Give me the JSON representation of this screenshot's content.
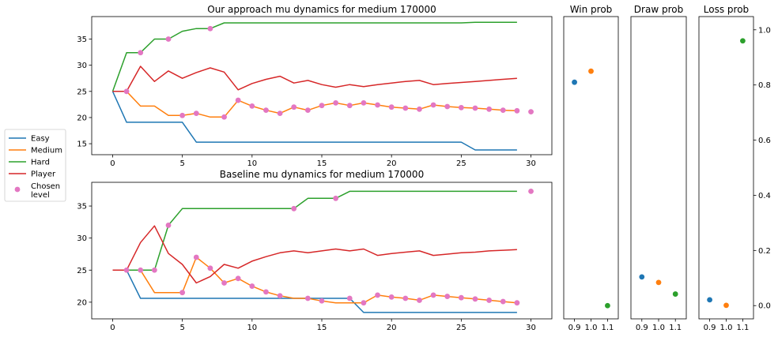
{
  "colors": {
    "easy": "#1f77b4",
    "medium": "#ff7f0e",
    "hard": "#2ca02c",
    "player": "#d62728",
    "chosen": "#e377c2"
  },
  "legend": {
    "items": [
      {
        "key": "easy",
        "label": "Easy",
        "marker": "line"
      },
      {
        "key": "medium",
        "label": "Medium",
        "marker": "line"
      },
      {
        "key": "hard",
        "label": "Hard",
        "marker": "line"
      },
      {
        "key": "player",
        "label": "Player",
        "marker": "line"
      },
      {
        "key": "chosen",
        "label": "Chosen\nlevel",
        "marker": "dot"
      }
    ]
  },
  "chart_data": [
    {
      "type": "line",
      "title": "Our approach mu dynamics for medium 170000",
      "xlim": [
        -1.5,
        31.5
      ],
      "ylim": [
        12.9,
        39.3
      ],
      "xticks": [
        0,
        5,
        10,
        15,
        20,
        25,
        30
      ],
      "yticks": [
        15,
        20,
        25,
        30,
        35
      ],
      "series": [
        {
          "name": "Easy",
          "key": "easy",
          "x": [
            0,
            1,
            2,
            3,
            4,
            5,
            6,
            7,
            8,
            9,
            10,
            11,
            12,
            13,
            14,
            15,
            16,
            17,
            18,
            19,
            20,
            21,
            22,
            23,
            24,
            25,
            26,
            27,
            28,
            29
          ],
          "values": [
            25,
            19.1,
            19.1,
            19.1,
            19.1,
            19.1,
            15.3,
            15.3,
            15.3,
            15.3,
            15.3,
            15.3,
            15.3,
            15.3,
            15.3,
            15.3,
            15.3,
            15.3,
            15.3,
            15.3,
            15.3,
            15.3,
            15.3,
            15.3,
            15.3,
            15.3,
            13.8,
            13.8,
            13.8,
            13.8
          ]
        },
        {
          "name": "Medium",
          "key": "medium",
          "x": [
            0,
            1,
            2,
            3,
            4,
            5,
            6,
            7,
            8,
            9,
            10,
            11,
            12,
            13,
            14,
            15,
            16,
            17,
            18,
            19,
            20,
            21,
            22,
            23,
            24,
            25,
            26,
            27,
            28,
            29
          ],
          "values": [
            25,
            25,
            22.2,
            22.2,
            20.4,
            20.4,
            20.8,
            20.1,
            20.1,
            23.3,
            22.2,
            21.4,
            20.8,
            22,
            21.4,
            22.3,
            22.8,
            22.3,
            22.8,
            22.4,
            22,
            21.8,
            21.6,
            22.4,
            22.1,
            21.9,
            21.8,
            21.6,
            21.4,
            21.3
          ]
        },
        {
          "name": "Hard",
          "key": "hard",
          "x": [
            0,
            1,
            2,
            3,
            4,
            5,
            6,
            7,
            8,
            9,
            10,
            11,
            12,
            13,
            14,
            15,
            16,
            17,
            18,
            19,
            20,
            21,
            22,
            23,
            24,
            25,
            26,
            27,
            28,
            29
          ],
          "values": [
            25,
            32.4,
            32.4,
            35,
            35,
            36.5,
            37,
            37,
            38.1,
            38.1,
            38.1,
            38.1,
            38.1,
            38.1,
            38.1,
            38.1,
            38.1,
            38.1,
            38.1,
            38.1,
            38.1,
            38.1,
            38.1,
            38.1,
            38.1,
            38.1,
            38.2,
            38.2,
            38.2,
            38.2
          ]
        },
        {
          "name": "Player",
          "key": "player",
          "x": [
            0,
            1,
            2,
            3,
            4,
            5,
            6,
            7,
            8,
            9,
            10,
            11,
            12,
            13,
            14,
            15,
            16,
            17,
            18,
            19,
            20,
            21,
            22,
            23,
            24,
            25,
            26,
            27,
            28,
            29
          ],
          "values": [
            25,
            25,
            29.8,
            26.9,
            28.9,
            27.5,
            28.6,
            29.5,
            28.7,
            25.3,
            26.5,
            27.3,
            27.9,
            26.6,
            27.1,
            26.3,
            25.8,
            26.3,
            25.9,
            26.3,
            26.6,
            26.9,
            27.1,
            26.3,
            26.5,
            26.7,
            26.9,
            27.1,
            27.3,
            27.5
          ]
        },
        {
          "name": "Chosen level",
          "key": "chosen",
          "marker": "dot",
          "x": [
            1,
            2,
            4,
            5,
            6,
            7,
            8,
            9,
            10,
            11,
            12,
            13,
            14,
            15,
            16,
            17,
            18,
            19,
            20,
            21,
            22,
            23,
            24,
            25,
            26,
            27,
            28,
            29,
            30
          ],
          "values": [
            25,
            32.4,
            35,
            20.4,
            20.8,
            37,
            20.1,
            23.3,
            22.2,
            21.4,
            20.8,
            22,
            21.4,
            22.3,
            22.8,
            22.3,
            22.8,
            22.4,
            22,
            21.8,
            21.6,
            22.4,
            22.1,
            21.9,
            21.8,
            21.6,
            21.4,
            21.3,
            21.1
          ]
        }
      ]
    },
    {
      "type": "line",
      "title": "Baseline mu dynamics for medium 170000",
      "xlim": [
        -1.5,
        31.5
      ],
      "ylim": [
        17.4,
        38.7
      ],
      "xticks": [
        0,
        5,
        10,
        15,
        20,
        25,
        30
      ],
      "yticks": [
        20,
        25,
        30,
        35
      ],
      "series": [
        {
          "name": "Easy",
          "key": "easy",
          "x": [
            0,
            1,
            2,
            3,
            4,
            5,
            6,
            7,
            8,
            9,
            10,
            11,
            12,
            13,
            14,
            15,
            16,
            17,
            18,
            19,
            20,
            21,
            22,
            23,
            24,
            25,
            26,
            27,
            28,
            29
          ],
          "values": [
            25,
            25,
            20.6,
            20.6,
            20.6,
            20.6,
            20.6,
            20.6,
            20.6,
            20.6,
            20.6,
            20.6,
            20.6,
            20.6,
            20.6,
            20.6,
            20.6,
            20.6,
            18.4,
            18.4,
            18.4,
            18.4,
            18.4,
            18.4,
            18.4,
            18.4,
            18.4,
            18.4,
            18.4,
            18.4
          ]
        },
        {
          "name": "Medium",
          "key": "medium",
          "x": [
            0,
            1,
            2,
            3,
            4,
            5,
            6,
            7,
            8,
            9,
            10,
            11,
            12,
            13,
            14,
            15,
            16,
            17,
            18,
            19,
            20,
            21,
            22,
            23,
            24,
            25,
            26,
            27,
            28,
            29
          ],
          "values": [
            25,
            25,
            25,
            21.5,
            21.5,
            21.5,
            27,
            25.3,
            23,
            23.7,
            22.5,
            21.6,
            21,
            20.6,
            20.6,
            20.2,
            19.9,
            19.9,
            19.9,
            21.1,
            20.8,
            20.6,
            20.3,
            21.1,
            20.9,
            20.7,
            20.5,
            20.3,
            20.1,
            19.9
          ]
        },
        {
          "name": "Hard",
          "key": "hard",
          "x": [
            0,
            1,
            2,
            3,
            4,
            5,
            6,
            7,
            8,
            9,
            10,
            11,
            12,
            13,
            14,
            15,
            16,
            17,
            18,
            19,
            20,
            21,
            22,
            23,
            24,
            25,
            26,
            27,
            28,
            29
          ],
          "values": [
            25,
            25,
            25,
            25,
            32,
            34.6,
            34.6,
            34.6,
            34.6,
            34.6,
            34.6,
            34.6,
            34.6,
            34.6,
            36.2,
            36.2,
            36.2,
            37.3,
            37.3,
            37.3,
            37.3,
            37.3,
            37.3,
            37.3,
            37.3,
            37.3,
            37.3,
            37.3,
            37.3,
            37.3
          ]
        },
        {
          "name": "Player",
          "key": "player",
          "x": [
            0,
            1,
            2,
            3,
            4,
            5,
            6,
            7,
            8,
            9,
            10,
            11,
            12,
            13,
            14,
            15,
            16,
            17,
            18,
            19,
            20,
            21,
            22,
            23,
            24,
            25,
            26,
            27,
            28,
            29
          ],
          "values": [
            25,
            25,
            29.3,
            31.9,
            27.6,
            25.9,
            23,
            24,
            25.9,
            25.3,
            26.4,
            27.1,
            27.7,
            28,
            27.7,
            28,
            28.3,
            28,
            28.3,
            27.3,
            27.6,
            27.8,
            28,
            27.3,
            27.5,
            27.7,
            27.8,
            28,
            28.1,
            28.2
          ]
        },
        {
          "name": "Chosen level",
          "key": "chosen",
          "marker": "dot",
          "x": [
            1,
            2,
            3,
            4,
            5,
            6,
            7,
            8,
            9,
            10,
            11,
            12,
            13,
            14,
            15,
            16,
            17,
            18,
            19,
            20,
            21,
            22,
            23,
            24,
            25,
            26,
            27,
            28,
            29,
            30
          ],
          "values": [
            25,
            25,
            25,
            32,
            21.5,
            27,
            25.3,
            23,
            23.7,
            22.5,
            21.6,
            21,
            34.6,
            20.6,
            20.2,
            36.2,
            20.6,
            19.9,
            21.1,
            20.8,
            20.6,
            20.3,
            21.1,
            20.9,
            20.7,
            20.5,
            20.3,
            20.1,
            19.9,
            37.3
          ]
        }
      ]
    },
    {
      "type": "scatter",
      "title": "Win prob",
      "xlim": [
        0.835,
        1.165
      ],
      "ylim": [
        -0.048,
        1.048
      ],
      "xticks": [
        "0.9",
        "1.0",
        "1.1"
      ],
      "points": [
        {
          "x": 0.9,
          "y": 0.81,
          "key": "easy"
        },
        {
          "x": 1.0,
          "y": 0.85,
          "key": "medium"
        },
        {
          "x": 1.1,
          "y": 0.0,
          "key": "hard"
        }
      ]
    },
    {
      "type": "scatter",
      "title": "Draw prob",
      "xlim": [
        0.835,
        1.165
      ],
      "ylim": [
        -0.048,
        1.048
      ],
      "xticks": [
        "0.9",
        "1.0",
        "1.1"
      ],
      "points": [
        {
          "x": 0.9,
          "y": 0.104,
          "key": "easy"
        },
        {
          "x": 1.0,
          "y": 0.084,
          "key": "medium"
        },
        {
          "x": 1.1,
          "y": 0.042,
          "key": "hard"
        }
      ]
    },
    {
      "type": "scatter",
      "title": "Loss prob",
      "xlim": [
        0.835,
        1.165
      ],
      "ylim": [
        -0.048,
        1.048
      ],
      "xticks": [
        "0.9",
        "1.0",
        "1.1"
      ],
      "yticks": [
        "0.0",
        "0.2",
        "0.4",
        "0.6",
        "0.8",
        "1.0"
      ],
      "points": [
        {
          "x": 0.9,
          "y": 0.021,
          "key": "easy"
        },
        {
          "x": 1.0,
          "y": 0.001,
          "key": "medium"
        },
        {
          "x": 1.1,
          "y": 0.96,
          "key": "hard"
        }
      ]
    }
  ]
}
